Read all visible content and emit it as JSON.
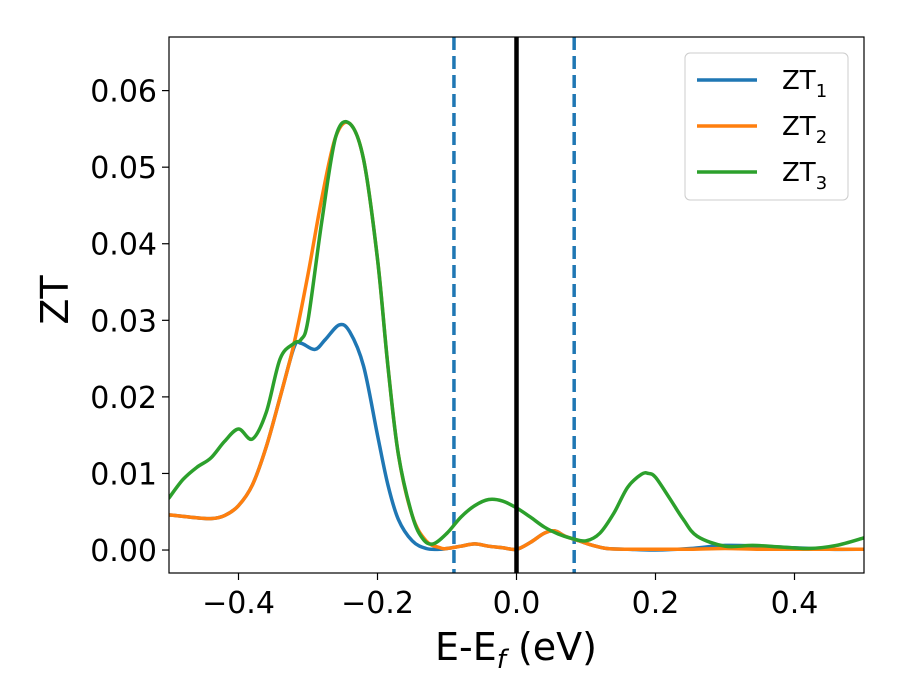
{
  "chart_data": {
    "type": "line",
    "title": "",
    "xlabel": {
      "main": "E-E",
      "subscript": "f",
      "suffix": " (eV)"
    },
    "ylabel": "ZT",
    "xlim": [
      -0.5,
      0.5
    ],
    "ylim": [
      -0.003,
      0.067
    ],
    "x_ticks": [
      -0.4,
      -0.2,
      0.0,
      0.2,
      0.4
    ],
    "x_tick_labels": [
      "−0.4",
      "−0.2",
      "0.0",
      "0.2",
      "0.4"
    ],
    "y_ticks": [
      0.0,
      0.01,
      0.02,
      0.03,
      0.04,
      0.05,
      0.06
    ],
    "y_tick_labels": [
      "0.00",
      "0.01",
      "0.02",
      "0.03",
      "0.04",
      "0.05",
      "0.06"
    ],
    "grid": false,
    "legend_position": "top-right",
    "vertical_lines": [
      {
        "x": -0.09,
        "color": "#1f77b4",
        "style": "dashed"
      },
      {
        "x": 0.083,
        "color": "#1f77b4",
        "style": "dashed"
      },
      {
        "x": 0.0,
        "color": "#000000",
        "style": "solid"
      }
    ],
    "series": [
      {
        "name": "ZT",
        "subscript": "1",
        "color": "#1f77b4",
        "x": [
          -0.5,
          -0.47,
          -0.44,
          -0.42,
          -0.4,
          -0.38,
          -0.36,
          -0.34,
          -0.32,
          -0.31,
          -0.29,
          -0.275,
          -0.255,
          -0.24,
          -0.22,
          -0.2,
          -0.185,
          -0.17,
          -0.15,
          -0.13,
          -0.11,
          -0.1,
          -0.08,
          -0.06,
          -0.04,
          -0.02,
          0.0,
          0.02,
          0.04,
          0.055,
          0.07,
          0.09,
          0.11,
          0.13,
          0.16,
          0.2,
          0.25,
          0.3,
          0.35,
          0.4,
          0.45,
          0.5
        ],
        "values": [
          0.0046,
          0.0043,
          0.0041,
          0.0045,
          0.0058,
          0.0085,
          0.0135,
          0.02,
          0.0265,
          0.027,
          0.0262,
          0.0275,
          0.0294,
          0.0285,
          0.024,
          0.015,
          0.0085,
          0.004,
          0.0012,
          0.0002,
          0.0001,
          0.0002,
          0.0005,
          0.0008,
          0.0005,
          0.0003,
          0.0001,
          0.001,
          0.0022,
          0.0025,
          0.0018,
          0.0012,
          0.0006,
          0.0002,
          0.0001,
          0.0,
          0.0002,
          0.0006,
          0.0005,
          0.0003,
          0.0001,
          0.0001
        ]
      },
      {
        "name": "ZT",
        "subscript": "2",
        "color": "#ff7f0e",
        "x": [
          -0.5,
          -0.47,
          -0.44,
          -0.42,
          -0.4,
          -0.38,
          -0.36,
          -0.34,
          -0.32,
          -0.3,
          -0.28,
          -0.26,
          -0.24,
          -0.22,
          -0.2,
          -0.185,
          -0.17,
          -0.15,
          -0.13,
          -0.11,
          -0.1,
          -0.08,
          -0.06,
          -0.04,
          -0.02,
          0.0,
          0.02,
          0.04,
          0.055,
          0.07,
          0.09,
          0.11,
          0.13,
          0.16,
          0.2,
          0.25,
          0.3,
          0.35,
          0.4,
          0.45,
          0.5
        ],
        "values": [
          0.0046,
          0.0043,
          0.0041,
          0.0045,
          0.0058,
          0.0085,
          0.0135,
          0.02,
          0.027,
          0.036,
          0.046,
          0.054,
          0.0557,
          0.051,
          0.038,
          0.024,
          0.0125,
          0.0045,
          0.0012,
          0.0003,
          0.0002,
          0.0005,
          0.0008,
          0.0005,
          0.0003,
          0.0001,
          0.001,
          0.0022,
          0.0025,
          0.0018,
          0.0012,
          0.0006,
          0.0002,
          0.0001,
          0.0001,
          0.0001,
          0.0002,
          0.0001,
          0.0001,
          0.0001,
          0.0001
        ]
      },
      {
        "name": "ZT",
        "subscript": "3",
        "color": "#2ca02c",
        "x": [
          -0.5,
          -0.48,
          -0.46,
          -0.44,
          -0.42,
          -0.4,
          -0.38,
          -0.36,
          -0.34,
          -0.32,
          -0.31,
          -0.3,
          -0.28,
          -0.26,
          -0.24,
          -0.22,
          -0.2,
          -0.185,
          -0.17,
          -0.15,
          -0.135,
          -0.12,
          -0.1,
          -0.08,
          -0.06,
          -0.04,
          -0.02,
          0.0,
          0.02,
          0.04,
          0.06,
          0.08,
          0.1,
          0.12,
          0.14,
          0.16,
          0.18,
          0.19,
          0.2,
          0.22,
          0.24,
          0.26,
          0.3,
          0.34,
          0.38,
          0.42,
          0.46,
          0.5
        ],
        "values": [
          0.0068,
          0.0092,
          0.0108,
          0.012,
          0.0142,
          0.0158,
          0.0145,
          0.018,
          0.025,
          0.027,
          0.0275,
          0.03,
          0.043,
          0.054,
          0.0557,
          0.051,
          0.038,
          0.024,
          0.0125,
          0.0045,
          0.0015,
          0.0008,
          0.0022,
          0.0043,
          0.0058,
          0.0066,
          0.0064,
          0.0055,
          0.0043,
          0.003,
          0.0021,
          0.0015,
          0.0012,
          0.0022,
          0.0048,
          0.0082,
          0.0099,
          0.01,
          0.0095,
          0.0068,
          0.004,
          0.0018,
          0.0005,
          0.0006,
          0.0004,
          0.0002,
          0.0006,
          0.0016
        ]
      }
    ]
  }
}
